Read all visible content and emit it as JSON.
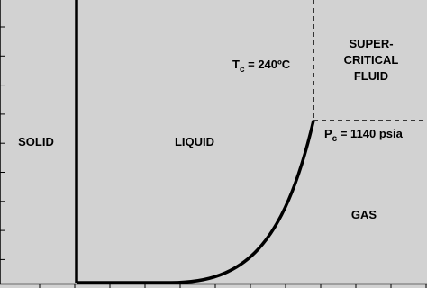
{
  "regions": {
    "solid": "SOLID",
    "liquid": "LIQUID",
    "supercritical": [
      "SUPER-",
      "CRITICAL",
      "FLUID"
    ],
    "gas": "GAS"
  },
  "critical_temperature": {
    "symbol": "T",
    "subscript": "c",
    "text": " = 240ºC"
  },
  "critical_pressure": {
    "symbol": "P",
    "subscript": "c",
    "text": " = 1140 psia"
  }
}
